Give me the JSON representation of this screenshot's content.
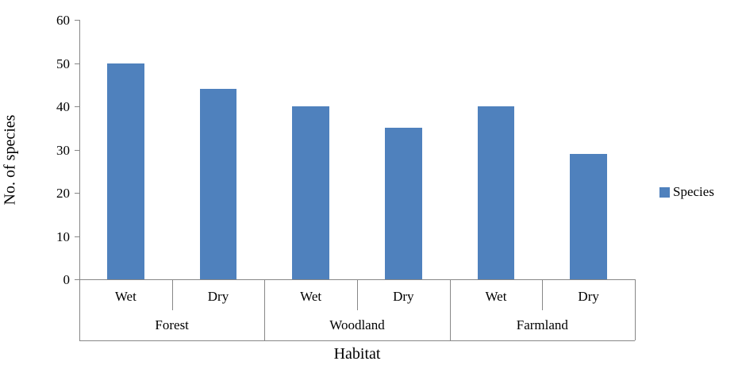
{
  "chart_data": {
    "type": "bar",
    "title": "",
    "xlabel": "Habitat",
    "ylabel": "No. of species",
    "ylim": [
      0,
      60
    ],
    "yticks": [
      0,
      10,
      20,
      30,
      40,
      50,
      60
    ],
    "grid": false,
    "legend": {
      "label": "Species",
      "position": "right"
    },
    "bar_color": "#4F81BD",
    "axis_color": "#878787",
    "groups": [
      {
        "label": "Forest",
        "categories": [
          "Wet",
          "Dry"
        ],
        "values": [
          50,
          44
        ]
      },
      {
        "label": "Woodland",
        "categories": [
          "Wet",
          "Dry"
        ],
        "values": [
          40,
          35
        ]
      },
      {
        "label": "Farmland",
        "categories": [
          "Wet",
          "Dry"
        ],
        "values": [
          40,
          29
        ]
      }
    ],
    "series": [
      {
        "name": "Species",
        "values": [
          50,
          44,
          40,
          35,
          40,
          29
        ]
      }
    ]
  }
}
